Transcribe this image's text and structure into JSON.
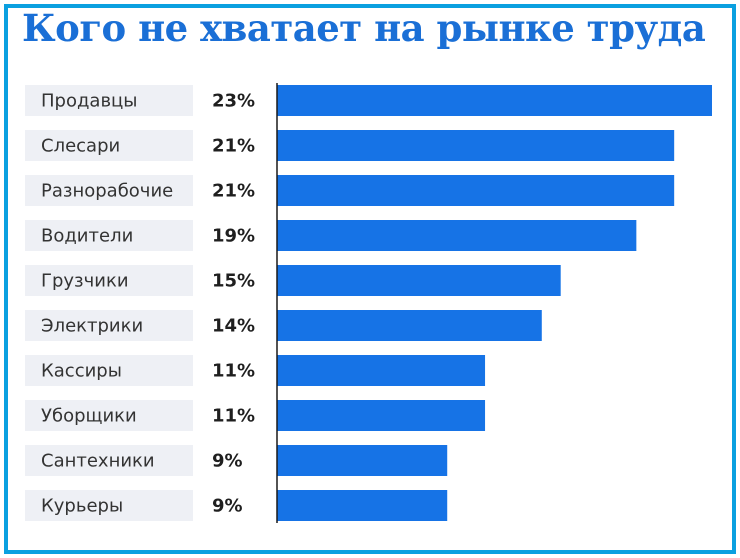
{
  "chart_data": {
    "type": "bar",
    "orientation": "horizontal",
    "title": "Кого не хватает на рынке труда",
    "categories": [
      "Продавцы",
      "Слесари",
      "Разнорабочие",
      "Водители",
      "Грузчики",
      "Электрики",
      "Кассиры",
      "Уборщики",
      "Сантехники",
      "Курьеры"
    ],
    "values": [
      23,
      21,
      21,
      19,
      15,
      14,
      11,
      11,
      9,
      9
    ],
    "value_labels": [
      "23%",
      "21%",
      "21%",
      "19%",
      "15%",
      "14%",
      "11%",
      "11%",
      "9%",
      "9%"
    ],
    "xlim": [
      0,
      23
    ],
    "grid": false,
    "legend": "none",
    "colors": {
      "bar": "#1673e6",
      "title": "#1a6fd6",
      "border": "#0aa0e0",
      "label_background": "#eef0f5"
    }
  }
}
